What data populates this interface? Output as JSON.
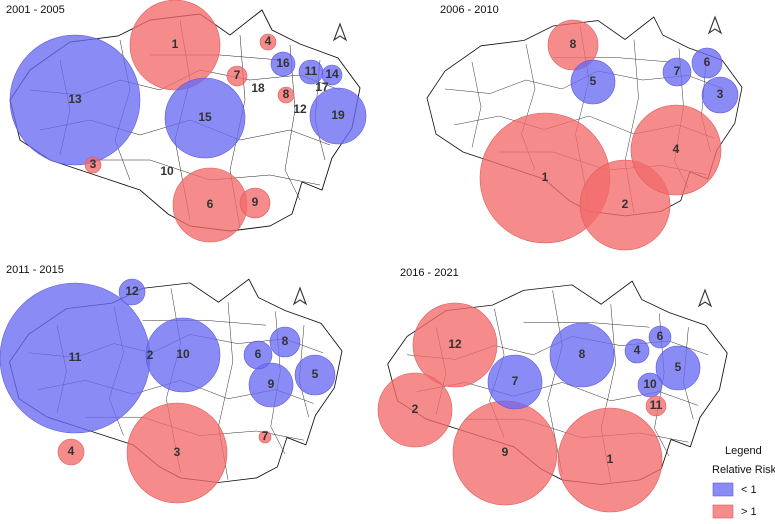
{
  "panels": [
    {
      "title": "2001 - 2005",
      "clusters": [
        "1",
        "13",
        "15",
        "16",
        "11",
        "14",
        "4",
        "7",
        "18",
        "8",
        "12",
        "19",
        "17",
        "3",
        "10",
        "6",
        "9"
      ]
    },
    {
      "title": "2006 - 2010",
      "clusters": [
        "8",
        "5",
        "7",
        "6",
        "3",
        "1",
        "2",
        "4"
      ]
    },
    {
      "title": "2011 - 2015",
      "clusters": [
        "12",
        "11",
        "2",
        "10",
        "6",
        "8",
        "9",
        "5",
        "4",
        "3",
        "7"
      ]
    },
    {
      "title": "2016 - 2021",
      "clusters": [
        "12",
        "7",
        "8",
        "4",
        "6",
        "5",
        "10",
        "11",
        "2",
        "9",
        "1"
      ]
    }
  ],
  "legend": {
    "title": "Legend",
    "subtitle": "Relative Risk",
    "items": [
      "< 1",
      "> 1"
    ]
  }
}
